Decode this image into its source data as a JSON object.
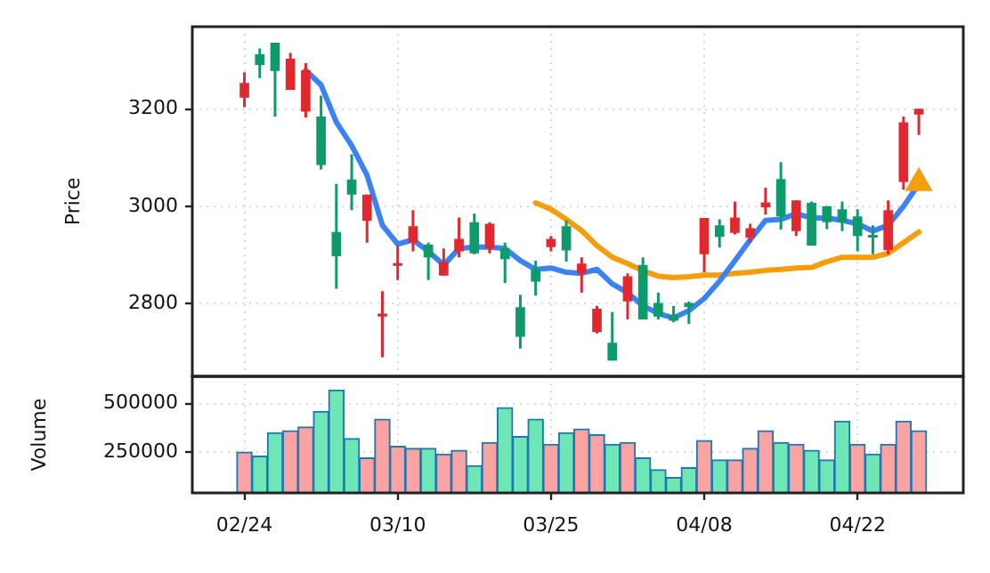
{
  "chart_data": [
    {
      "type": "candlestick",
      "ylabel": "Price",
      "ohlc": [
        [
          3254,
          3276,
          3204,
          3224
        ],
        [
          3291,
          3325,
          3264,
          3313
        ],
        [
          3279,
          3337,
          3185,
          3337
        ],
        [
          3304,
          3316,
          3240,
          3240
        ],
        [
          3280,
          3295,
          3183,
          3195
        ],
        [
          3085,
          3228,
          3076,
          3185
        ],
        [
          2897,
          3046,
          2830,
          2947
        ],
        [
          3024,
          3107,
          2992,
          3055
        ],
        [
          3024,
          3024,
          2925,
          2970
        ],
        [
          2779,
          2825,
          2689,
          2773
        ],
        [
          2883,
          2919,
          2848,
          2879
        ],
        [
          2959,
          2992,
          2907,
          2925
        ],
        [
          2895,
          2925,
          2848,
          2921
        ],
        [
          2885,
          2913,
          2857,
          2857
        ],
        [
          2933,
          2977,
          2895,
          2907
        ],
        [
          2903,
          2985,
          2901,
          2967
        ],
        [
          2964,
          2967,
          2903,
          2913
        ],
        [
          2891,
          2925,
          2842,
          2913
        ],
        [
          2731,
          2818,
          2707,
          2792
        ],
        [
          2845,
          2888,
          2816,
          2870
        ],
        [
          2933,
          2939,
          2907,
          2916
        ],
        [
          2909,
          2971,
          2886,
          2959
        ],
        [
          2882,
          2895,
          2822,
          2862
        ],
        [
          2789,
          2795,
          2738,
          2741
        ],
        [
          2682,
          2782,
          2682,
          2719
        ],
        [
          2856,
          2862,
          2767,
          2804
        ],
        [
          2767,
          2895,
          2767,
          2879
        ],
        [
          2773,
          2822,
          2767,
          2801
        ],
        [
          2764,
          2795,
          2761,
          2776
        ],
        [
          2792,
          2804,
          2758,
          2801
        ],
        [
          2976,
          2976,
          2864,
          2901
        ],
        [
          2937,
          2973,
          2915,
          2961
        ],
        [
          2977,
          3010,
          2942,
          2945
        ],
        [
          2955,
          2964,
          2925,
          2935
        ],
        [
          3008,
          3038,
          2983,
          2998
        ],
        [
          2979,
          3091,
          2952,
          3056
        ],
        [
          3012,
          3012,
          2939,
          2949
        ],
        [
          2919,
          3010,
          2919,
          3007
        ],
        [
          2967,
          3000,
          2953,
          3000
        ],
        [
          2967,
          3010,
          2949,
          2994
        ],
        [
          2939,
          2994,
          2907,
          2979
        ],
        [
          2937,
          2961,
          2901,
          2941
        ],
        [
          2992,
          3012,
          2901,
          2910
        ],
        [
          3173,
          3185,
          3034,
          3050
        ],
        [
          3201,
          3201,
          3147,
          3189
        ]
      ],
      "colors": [
        "#e0282e",
        "#0e9a6a",
        "#0e9a6a",
        "#e0282e",
        "#e0282e",
        "#0e9a6a",
        "#0e9a6a",
        "#0e9a6a",
        "#e0282e",
        "#e0282e",
        "#e0282e",
        "#e0282e",
        "#0e9a6a",
        "#e0282e",
        "#e0282e",
        "#0e9a6a",
        "#e0282e",
        "#0e9a6a",
        "#0e9a6a",
        "#0e9a6a",
        "#e0282e",
        "#0e9a6a",
        "#e0282e",
        "#e0282e",
        "#0e9a6a",
        "#e0282e",
        "#0e9a6a",
        "#0e9a6a",
        "#0e9a6a",
        "#0e9a6a",
        "#e0282e",
        "#0e9a6a",
        "#e0282e",
        "#e0282e",
        "#e0282e",
        "#0e9a6a",
        "#e0282e",
        "#0e9a6a",
        "#0e9a6a",
        "#0e9a6a",
        "#0e9a6a",
        "#0e9a6a",
        "#e0282e",
        "#e0282e",
        "#e0282e"
      ],
      "series": [
        {
          "type": "line",
          "color": "#3b82f6",
          "values": [
            null,
            null,
            null,
            null,
            3280,
            3250,
            3173,
            3125,
            3064,
            2961,
            2922,
            2931,
            2907,
            2879,
            2913,
            2916,
            2916,
            2913,
            2888,
            2870,
            2873,
            2864,
            2862,
            2870,
            2840,
            2822,
            2795,
            2779,
            2770,
            2785,
            2810,
            2846,
            2888,
            2931,
            2971,
            2973,
            2985,
            2976,
            2976,
            2971,
            2964,
            2949,
            2961,
            3000,
            3046
          ]
        },
        {
          "type": "line",
          "color": "#f59e0b",
          "values": [
            null,
            null,
            null,
            null,
            null,
            null,
            null,
            null,
            null,
            null,
            null,
            null,
            null,
            null,
            null,
            null,
            null,
            null,
            null,
            3007,
            2994,
            2973,
            2950,
            2919,
            2895,
            2882,
            2867,
            2856,
            2853,
            2855,
            2858,
            2858,
            2862,
            2864,
            2868,
            2870,
            2873,
            2874,
            2886,
            2895,
            2895,
            2895,
            2903,
            2925,
            2947
          ]
        },
        {
          "type": "scatter",
          "color": "#f59e0b",
          "marker": "triangle",
          "values": [
            null,
            null,
            null,
            null,
            null,
            null,
            null,
            null,
            null,
            null,
            null,
            null,
            null,
            null,
            null,
            null,
            null,
            null,
            null,
            null,
            null,
            null,
            null,
            null,
            null,
            null,
            null,
            null,
            null,
            null,
            null,
            null,
            null,
            null,
            null,
            null,
            null,
            null,
            null,
            null,
            null,
            null,
            null,
            null,
            3048
          ]
        }
      ],
      "ylim": [
        2650,
        3370
      ],
      "yticks": [
        2800,
        3000,
        3200
      ],
      "grid": true,
      "tick_labels": "y"
    },
    {
      "type": "bar",
      "ylabel": "Volume",
      "categories": [
        "02/24",
        null,
        null,
        null,
        null,
        null,
        null,
        null,
        null,
        null,
        "03/10",
        null,
        null,
        null,
        null,
        null,
        null,
        null,
        null,
        null,
        "03/25",
        null,
        null,
        null,
        null,
        null,
        null,
        null,
        null,
        null,
        "04/08",
        null,
        null,
        null,
        null,
        null,
        null,
        null,
        null,
        null,
        "04/22",
        null,
        null,
        null,
        null
      ],
      "values": [
        250000,
        230000,
        350000,
        360000,
        380000,
        460000,
        570000,
        320000,
        220000,
        420000,
        280000,
        270000,
        270000,
        240000,
        260000,
        180000,
        300000,
        480000,
        330000,
        420000,
        290000,
        350000,
        370000,
        340000,
        290000,
        300000,
        220000,
        160000,
        120000,
        170000,
        310000,
        210000,
        210000,
        270000,
        360000,
        300000,
        290000,
        260000,
        210000,
        410000,
        290000,
        240000,
        290000,
        410000,
        360000
      ],
      "colors": [
        "#f9a3a3",
        "#6ee6b6",
        "#6ee6b6",
        "#f9a3a3",
        "#f9a3a3",
        "#6ee6b6",
        "#6ee6b6",
        "#6ee6b6",
        "#f9a3a3",
        "#f9a3a3",
        "#f9a3a3",
        "#f9a3a3",
        "#6ee6b6",
        "#f9a3a3",
        "#f9a3a3",
        "#6ee6b6",
        "#f9a3a3",
        "#6ee6b6",
        "#6ee6b6",
        "#6ee6b6",
        "#f9a3a3",
        "#6ee6b6",
        "#f9a3a3",
        "#f9a3a3",
        "#6ee6b6",
        "#f9a3a3",
        "#6ee6b6",
        "#6ee6b6",
        "#6ee6b6",
        "#6ee6b6",
        "#f9a3a3",
        "#6ee6b6",
        "#f9a3a3",
        "#f9a3a3",
        "#f9a3a3",
        "#6ee6b6",
        "#f9a3a3",
        "#6ee6b6",
        "#6ee6b6",
        "#6ee6b6",
        "#f9a3a3",
        "#6ee6b6",
        "#f9a3a3",
        "#f9a3a3",
        "#f9a3a3"
      ],
      "ylim": [
        40000,
        640000
      ],
      "yticks": [
        250000,
        500000
      ],
      "grid": true
    }
  ]
}
